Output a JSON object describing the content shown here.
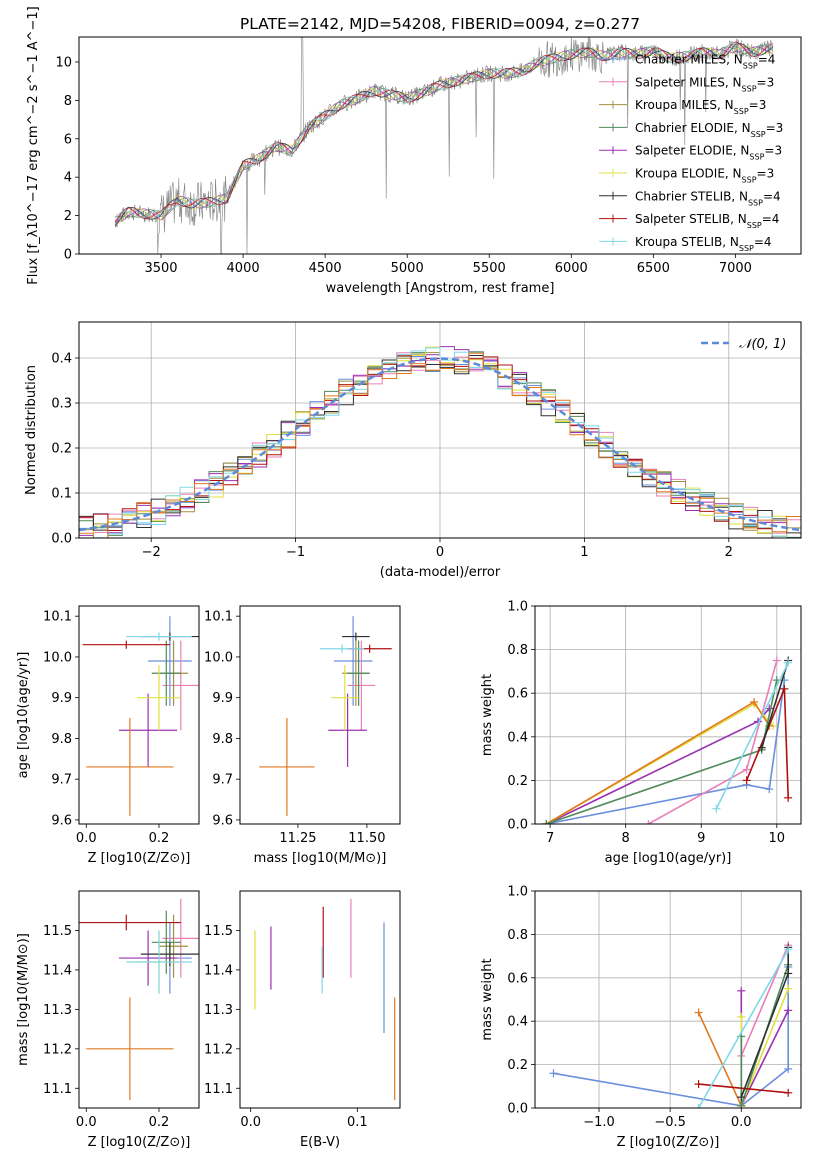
{
  "figure_title": "PLATE=2142, MJD=54208, FIBERID=0094, z=0.277",
  "colors": {
    "grid": "#b0b0b0",
    "spectrum": "#808080",
    "gauss": "#5b8bd8"
  },
  "models": [
    {
      "name": "Chabrier MILES",
      "nssp": "4",
      "color": "#6a8fdd"
    },
    {
      "name": "Salpeter MILES",
      "nssp": "3",
      "color": "#e880b8"
    },
    {
      "name": "Kroupa MILES",
      "nssp": "3",
      "color": "#a09040"
    },
    {
      "name": "Chabrier ELODIE",
      "nssp": "3",
      "color": "#4f8a5a"
    },
    {
      "name": "Salpeter ELODIE",
      "nssp": "3",
      "color": "#9a30b0"
    },
    {
      "name": "Kroupa ELODIE",
      "nssp": "3",
      "color": "#e0e040"
    },
    {
      "name": "Chabrier STELIB",
      "nssp": "4",
      "color": "#303030"
    },
    {
      "name": "Salpeter STELIB",
      "nssp": "4",
      "color": "#b01010"
    },
    {
      "name": "Kroupa STELIB",
      "nssp": "4",
      "color": "#80d8e8"
    }
  ],
  "chart_data": [
    {
      "type": "line",
      "id": "spectrum",
      "xlabel": "wavelength [Angstrom, rest frame]",
      "ylabel": "Flux [f_λ10^−17 erg cm^−2 s^−1 A^−1]",
      "xlim": [
        3000,
        7400
      ],
      "ylim": [
        0,
        11.3
      ],
      "xticks": [
        3500,
        4000,
        4500,
        5000,
        5500,
        6000,
        6500,
        7000
      ],
      "yticks": [
        0,
        2,
        4,
        6,
        8,
        10
      ],
      "legend_position": "right",
      "continuum": [
        [
          3220,
          1.7
        ],
        [
          3300,
          2.2
        ],
        [
          3400,
          2.1
        ],
        [
          3500,
          2.0
        ],
        [
          3600,
          2.8
        ],
        [
          3700,
          2.6
        ],
        [
          3800,
          2.7
        ],
        [
          3900,
          2.9
        ],
        [
          4000,
          4.6
        ],
        [
          4100,
          5.0
        ],
        [
          4200,
          5.6
        ],
        [
          4300,
          5.4
        ],
        [
          4400,
          6.6
        ],
        [
          4500,
          7.2
        ],
        [
          4600,
          7.8
        ],
        [
          4700,
          8.1
        ],
        [
          4800,
          8.5
        ],
        [
          4900,
          8.3
        ],
        [
          5000,
          8.1
        ],
        [
          5100,
          8.4
        ],
        [
          5200,
          8.8
        ],
        [
          5300,
          9.0
        ],
        [
          5400,
          9.2
        ],
        [
          5500,
          9.4
        ],
        [
          5600,
          9.4
        ],
        [
          5700,
          9.5
        ],
        [
          5800,
          10.0
        ],
        [
          5900,
          10.2
        ],
        [
          6000,
          10.4
        ],
        [
          6100,
          10.5
        ],
        [
          6200,
          10.3
        ],
        [
          6300,
          10.5
        ],
        [
          6400,
          10.4
        ],
        [
          6500,
          10.6
        ],
        [
          6600,
          10.2
        ],
        [
          6700,
          10.3
        ],
        [
          6800,
          10.5
        ],
        [
          6900,
          10.4
        ],
        [
          7000,
          10.8
        ],
        [
          7100,
          10.5
        ],
        [
          7200,
          10.7
        ]
      ]
    },
    {
      "type": "bar",
      "id": "residual-histogram",
      "xlabel": "(data-model)/error",
      "ylabel": "Normed distribution",
      "xlim": [
        -2.5,
        2.5
      ],
      "ylim": [
        0,
        0.48
      ],
      "xticks": [
        -2,
        -1,
        0,
        1,
        2
      ],
      "yticks": [
        0.0,
        0.1,
        0.2,
        0.3,
        0.4
      ],
      "legend_label": "N(0,1)",
      "legend_position": "upper right"
    },
    {
      "type": "scatter",
      "id": "z-age",
      "xlabel": "Z [log10(Z/Z⊙)]",
      "ylabel": "age [log10(age/yr)]",
      "xlim": [
        -0.02,
        0.31
      ],
      "ylim": [
        9.59,
        10.125
      ],
      "xticks": [
        0.0,
        0.2
      ],
      "yticks": [
        9.6,
        9.7,
        9.8,
        9.9,
        10.0,
        10.1
      ],
      "points": [
        {
          "x": 0.23,
          "y": 9.99,
          "xerr": 0.06,
          "yerr": 0.11,
          "model": 0
        },
        {
          "x": 0.26,
          "y": 9.93,
          "xerr": 0.05,
          "yerr": 0.11,
          "model": 1
        },
        {
          "x": 0.24,
          "y": 9.96,
          "xerr": 0.04,
          "yerr": 0.08,
          "model": 2
        },
        {
          "x": 0.22,
          "y": 9.96,
          "xerr": 0.04,
          "yerr": 0.08,
          "model": 3
        },
        {
          "x": 0.17,
          "y": 9.82,
          "xerr": 0.08,
          "yerr": 0.09,
          "model": 4
        },
        {
          "x": 0.2,
          "y": 9.9,
          "xerr": 0.06,
          "yerr": 0.08,
          "model": 5
        },
        {
          "x": 0.23,
          "y": 10.05,
          "xerr": 0.08,
          "yerr": 0.01,
          "model": 6
        },
        {
          "x": 0.11,
          "y": 10.03,
          "xerr": 0.12,
          "yerr": 0.01,
          "model": 7
        },
        {
          "x": 0.2,
          "y": 10.05,
          "xerr": 0.09,
          "yerr": 0.01,
          "model": 8
        },
        {
          "x": 0.12,
          "y": 9.73,
          "xerr": 0.12,
          "yerr": 0.12,
          "model": 9
        }
      ]
    },
    {
      "type": "scatter",
      "id": "mass-age",
      "xlabel": "mass [log10(M/M⊙)]",
      "ylabel": "",
      "xlim": [
        11.04,
        11.62
      ],
      "ylim": [
        9.59,
        10.125
      ],
      "xticks": [
        11.25,
        11.5
      ],
      "yticks": [
        9.6,
        9.7,
        9.8,
        9.9,
        10.0,
        10.1
      ],
      "points": [
        {
          "x": 11.45,
          "y": 9.99,
          "xerr": 0.07,
          "yerr": 0.11,
          "model": 0
        },
        {
          "x": 11.48,
          "y": 9.93,
          "xerr": 0.05,
          "yerr": 0.11,
          "model": 1
        },
        {
          "x": 11.46,
          "y": 9.96,
          "xerr": 0.05,
          "yerr": 0.08,
          "model": 2
        },
        {
          "x": 11.47,
          "y": 9.96,
          "xerr": 0.04,
          "yerr": 0.08,
          "model": 3
        },
        {
          "x": 11.43,
          "y": 9.82,
          "xerr": 0.07,
          "yerr": 0.09,
          "model": 4
        },
        {
          "x": 11.42,
          "y": 9.9,
          "xerr": 0.05,
          "yerr": 0.08,
          "model": 5
        },
        {
          "x": 11.46,
          "y": 10.05,
          "xerr": 0.05,
          "yerr": 0.01,
          "model": 6
        },
        {
          "x": 11.51,
          "y": 10.02,
          "xerr": 0.08,
          "yerr": 0.01,
          "model": 7
        },
        {
          "x": 11.41,
          "y": 10.02,
          "xerr": 0.08,
          "yerr": 0.01,
          "model": 8
        },
        {
          "x": 11.21,
          "y": 9.73,
          "xerr": 0.1,
          "yerr": 0.12,
          "model": 9
        }
      ]
    },
    {
      "type": "line",
      "id": "age-weight",
      "xlabel": "age [log10(age/yr)]",
      "ylabel": "mass weight",
      "xlim": [
        6.8,
        10.32
      ],
      "ylim": [
        0,
        1.0
      ],
      "xticks": [
        7,
        8,
        9,
        10
      ],
      "yticks": [
        0.0,
        0.2,
        0.4,
        0.6,
        0.8,
        1.0
      ],
      "series": [
        {
          "model": 0,
          "points": [
            [
              6.95,
              0.0
            ],
            [
              9.6,
              0.18
            ],
            [
              9.9,
              0.16
            ],
            [
              10.1,
              0.66
            ]
          ]
        },
        {
          "model": 1,
          "points": [
            [
              8.3,
              0.0
            ],
            [
              9.6,
              0.25
            ],
            [
              10.0,
              0.75
            ]
          ]
        },
        {
          "model": 4,
          "points": [
            [
              6.95,
              0.0
            ],
            [
              9.75,
              0.47
            ],
            [
              9.9,
              0.53
            ]
          ]
        },
        {
          "model": 5,
          "points": [
            [
              6.95,
              0.0
            ],
            [
              9.7,
              0.55
            ],
            [
              9.95,
              0.45
            ]
          ]
        },
        {
          "model": 9,
          "points": [
            [
              6.95,
              0.0
            ],
            [
              9.7,
              0.56
            ],
            [
              9.9,
              0.45
            ]
          ]
        },
        {
          "model": 3,
          "points": [
            [
              6.95,
              0.0
            ],
            [
              9.8,
              0.34
            ],
            [
              10.0,
              0.66
            ]
          ]
        },
        {
          "model": 7,
          "points": [
            [
              9.6,
              0.2
            ],
            [
              10.1,
              0.62
            ],
            [
              10.15,
              0.12
            ]
          ]
        },
        {
          "model": 6,
          "points": [
            [
              9.8,
              0.35
            ],
            [
              10.15,
              0.75
            ]
          ]
        },
        {
          "model": 8,
          "points": [
            [
              9.2,
              0.07
            ],
            [
              10.15,
              0.74
            ]
          ]
        }
      ]
    },
    {
      "type": "scatter",
      "id": "z-mass",
      "xlabel": "Z [log10(Z/Z⊙)]",
      "ylabel": "mass [log10(M/M⊙)]",
      "xlim": [
        -0.02,
        0.31
      ],
      "ylim": [
        11.05,
        11.6
      ],
      "xticks": [
        0.0,
        0.2
      ],
      "yticks": [
        11.1,
        11.2,
        11.3,
        11.4,
        11.5
      ],
      "points": [
        {
          "x": 0.23,
          "y": 11.43,
          "xerr": 0.06,
          "yerr": 0.09,
          "model": 0
        },
        {
          "x": 0.26,
          "y": 11.48,
          "xerr": 0.05,
          "yerr": 0.1,
          "model": 1
        },
        {
          "x": 0.24,
          "y": 11.46,
          "xerr": 0.04,
          "yerr": 0.08,
          "model": 2
        },
        {
          "x": 0.22,
          "y": 11.47,
          "xerr": 0.04,
          "yerr": 0.08,
          "model": 3
        },
        {
          "x": 0.17,
          "y": 11.43,
          "xerr": 0.08,
          "yerr": 0.07,
          "model": 4
        },
        {
          "x": 0.2,
          "y": 11.42,
          "xerr": 0.06,
          "yerr": 0.08,
          "model": 5
        },
        {
          "x": 0.23,
          "y": 11.44,
          "xerr": 0.08,
          "yerr": 0.03,
          "model": 6
        },
        {
          "x": 0.11,
          "y": 11.52,
          "xerr": 0.15,
          "yerr": 0.02,
          "model": 7
        },
        {
          "x": 0.2,
          "y": 11.42,
          "xerr": 0.09,
          "yerr": 0.08,
          "model": 8
        },
        {
          "x": 0.12,
          "y": 11.2,
          "xerr": 0.12,
          "yerr": 0.13,
          "model": 9
        }
      ]
    },
    {
      "type": "scatter",
      "id": "ebv-mass",
      "xlabel": "E(B-V)",
      "ylabel": "",
      "xlim": [
        -0.01,
        0.14
      ],
      "ylim": [
        11.05,
        11.6
      ],
      "xticks": [
        0.0,
        0.1
      ],
      "yticks": [
        11.1,
        11.2,
        11.3,
        11.4,
        11.5
      ],
      "points": [
        {
          "x": 0.125,
          "y": 11.38,
          "yerr": 0.14,
          "model": 0
        },
        {
          "x": 0.094,
          "y": 11.48,
          "yerr": 0.1,
          "model": 1
        },
        {
          "x": 0.004,
          "y": 11.4,
          "yerr": 0.1,
          "model": 5
        },
        {
          "x": 0.019,
          "y": 11.43,
          "yerr": 0.08,
          "model": 4
        },
        {
          "x": 0.068,
          "y": 11.47,
          "yerr": 0.09,
          "model": 7
        },
        {
          "x": 0.067,
          "y": 11.4,
          "yerr": 0.06,
          "model": 8
        },
        {
          "x": 0.135,
          "y": 11.2,
          "yerr": 0.13,
          "model": 9
        }
      ]
    },
    {
      "type": "line",
      "id": "z-weight",
      "xlabel": "Z [log10(Z/Z⊙)]",
      "ylabel": "mass weight",
      "xlim": [
        -1.45,
        0.42
      ],
      "ylim": [
        0,
        1.0
      ],
      "xticks": [
        -1.0,
        -0.5,
        0.0
      ],
      "yticks": [
        0.0,
        0.2,
        0.4,
        0.6,
        0.8,
        1.0
      ],
      "series": [
        {
          "model": 0,
          "points": [
            [
              -1.32,
              0.16
            ],
            [
              0.0,
              0.01
            ],
            [
              0.33,
              0.18
            ],
            [
              0.33,
              0.65
            ]
          ]
        },
        {
          "model": 1,
          "points": [
            [
              0.0,
              0.24
            ],
            [
              0.33,
              0.75
            ]
          ]
        },
        {
          "model": 4,
          "points": [
            [
              0.0,
              0.54
            ],
            [
              0.0,
              0.01
            ],
            [
              0.33,
              0.45
            ]
          ]
        },
        {
          "model": 5,
          "points": [
            [
              0.0,
              0.42
            ],
            [
              0.0,
              0.01
            ],
            [
              0.33,
              0.55
            ]
          ]
        },
        {
          "model": 9,
          "points": [
            [
              -0.3,
              0.44
            ],
            [
              0.0,
              0.01
            ]
          ]
        },
        {
          "model": 3,
          "points": [
            [
              0.0,
              0.33
            ],
            [
              0.0,
              0.01
            ],
            [
              0.33,
              0.66
            ]
          ]
        },
        {
          "model": 7,
          "points": [
            [
              -0.3,
              0.11
            ],
            [
              0.33,
              0.07
            ]
          ]
        },
        {
          "model": 6,
          "points": [
            [
              0.0,
              0.05
            ],
            [
              0.33,
              0.62
            ],
            [
              0.33,
              0.74
            ]
          ]
        },
        {
          "model": 8,
          "points": [
            [
              -0.3,
              0.0
            ],
            [
              0.33,
              0.73
            ]
          ]
        }
      ]
    }
  ]
}
